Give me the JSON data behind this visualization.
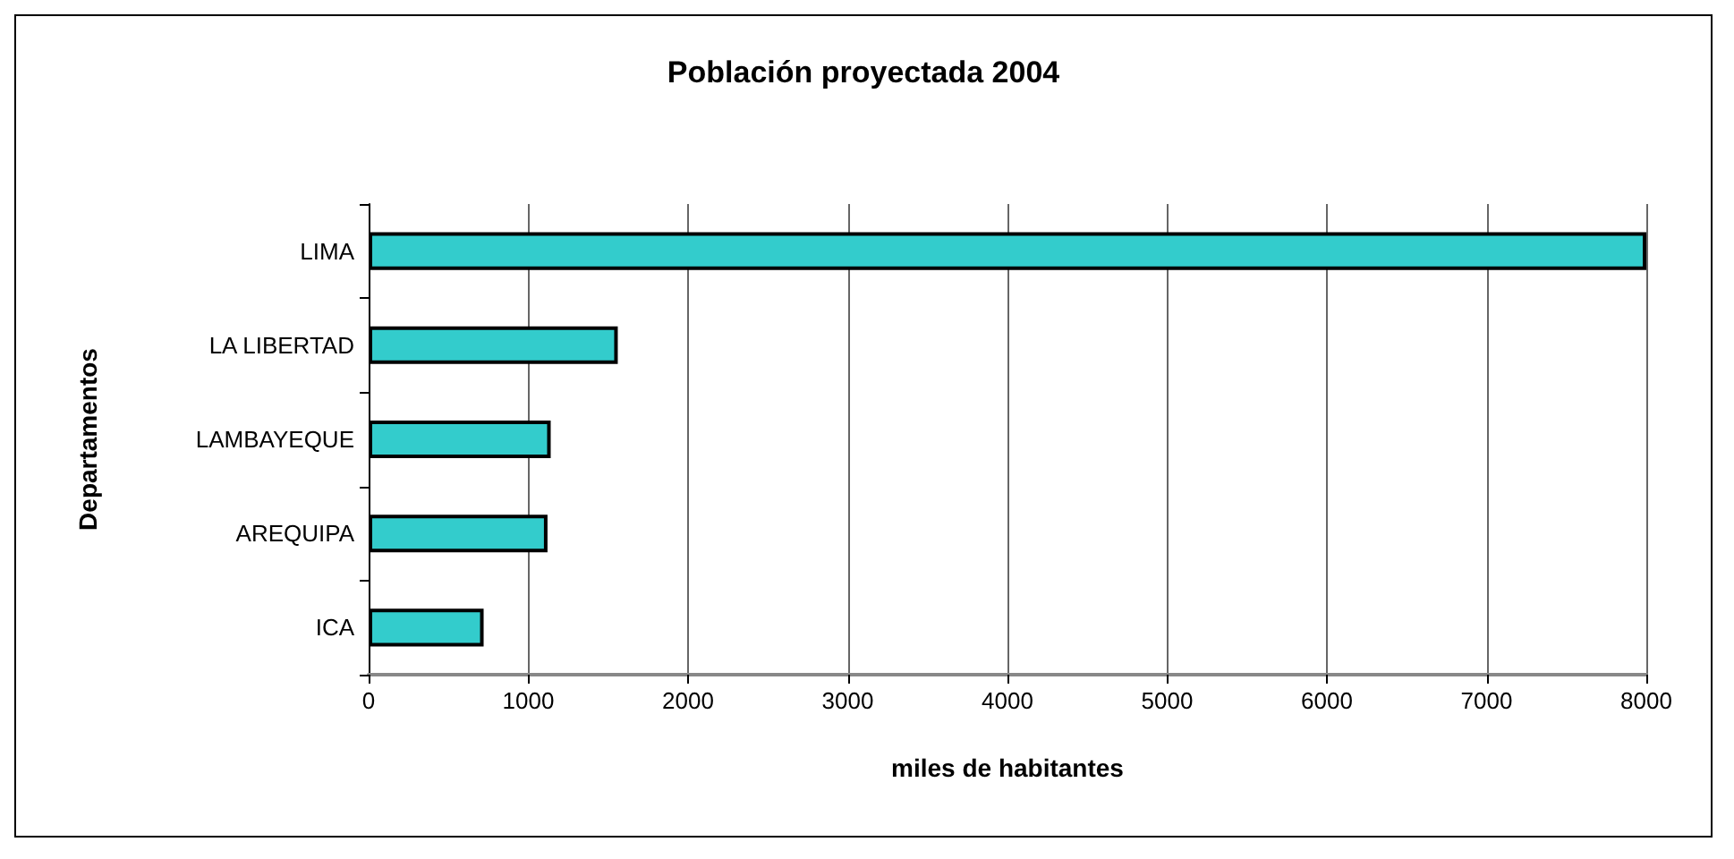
{
  "chart_data": {
    "type": "bar",
    "orientation": "horizontal",
    "title": "Población proyectada 2004",
    "xlabel": "miles de habitantes",
    "ylabel": "Departamentos",
    "categories": [
      "LIMA",
      "LA LIBERTAD",
      "LAMBAYEQUE",
      "AREQUIPA",
      "ICA"
    ],
    "values": [
      8000,
      1560,
      1140,
      1120,
      720
    ],
    "color": "#33cccc",
    "xlim": [
      0,
      8000
    ],
    "xticks": [
      0,
      1000,
      2000,
      3000,
      4000,
      5000,
      6000,
      7000,
      8000
    ],
    "grid": "x"
  }
}
